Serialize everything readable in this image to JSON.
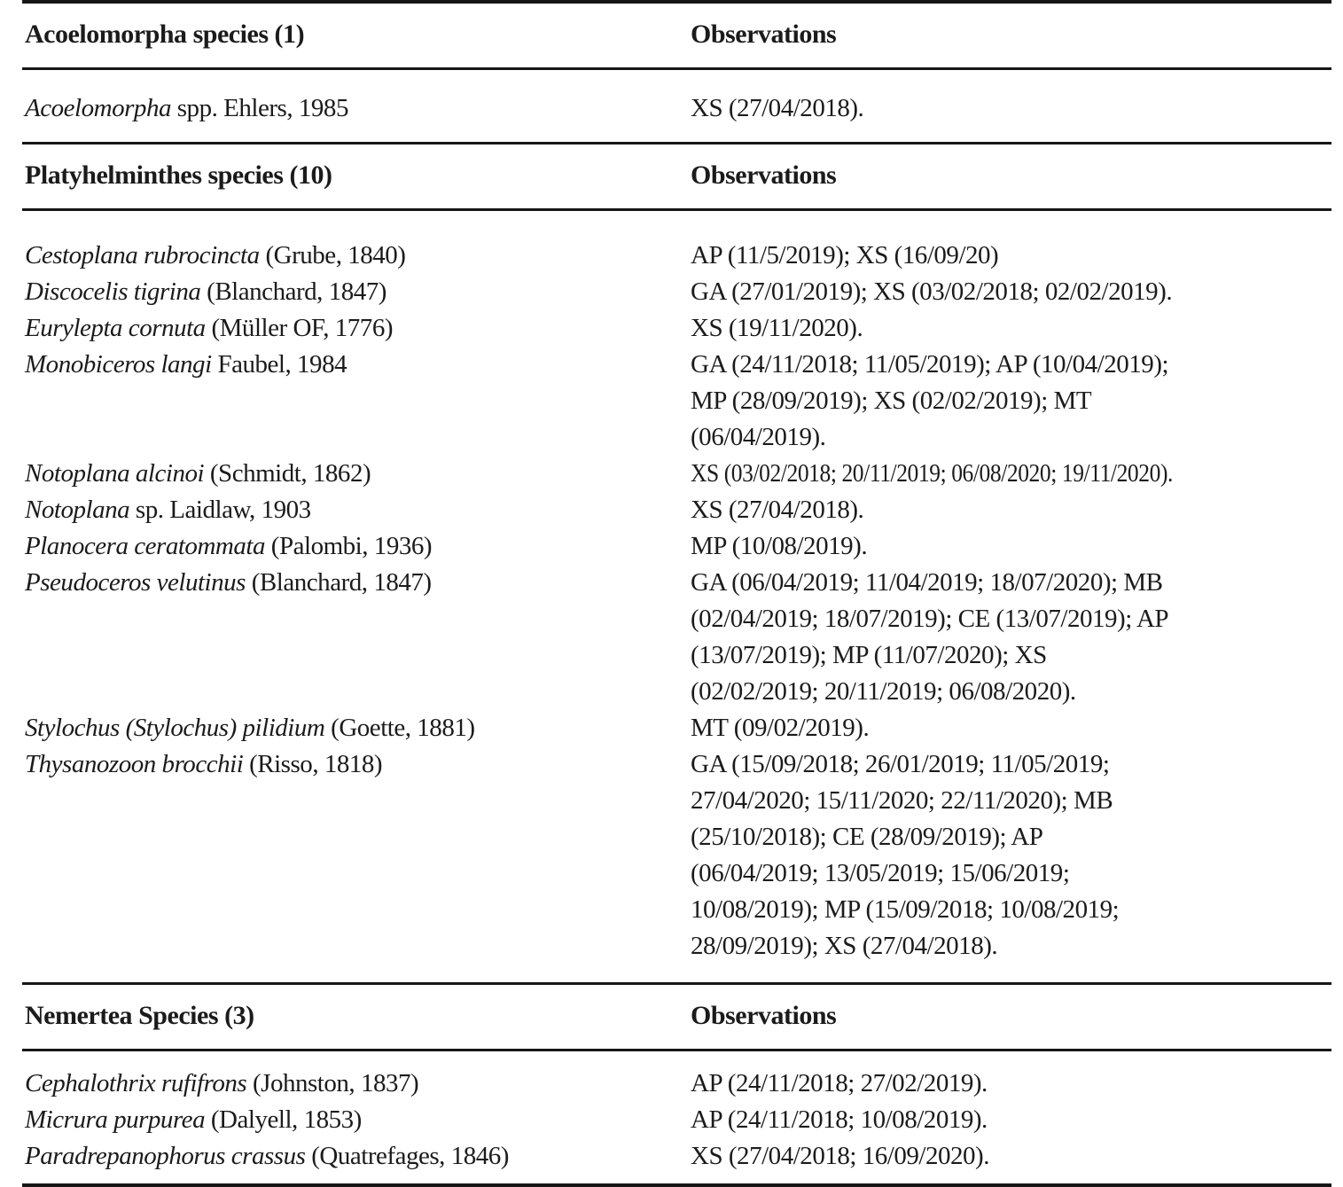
{
  "table": {
    "sections": [
      {
        "title": "Acoelomorpha species (1)",
        "obs_header": "Observations",
        "rows": [
          {
            "name": "Acoelomorpha",
            "authority": " spp. Ehlers, 1985",
            "observations": "XS (27/04/2018)."
          }
        ]
      },
      {
        "title": "Platyhelminthes species (10)",
        "obs_header": "Observations",
        "rows": [
          {
            "name": "Cestoplana rubrocincta",
            "authority": " (Grube, 1840)",
            "observations": "AP (11/5/2019); XS (16/09/20)"
          },
          {
            "name": "Discocelis tigrina",
            "authority": " (Blanchard, 1847)",
            "observations": "GA (27/01/2019); XS (03/02/2018; 02/02/2019)."
          },
          {
            "name": "Eurylepta cornuta",
            "authority": " (Müller OF, 1776)",
            "observations": "XS (19/11/2020)."
          },
          {
            "name": "Monobiceros langi",
            "authority": " Faubel, 1984",
            "observations": "GA (24/11/2018; 11/05/2019); AP (10/04/2019); MP (28/09/2019); XS (02/02/2019); MT (06/04/2019)."
          },
          {
            "name": "Notoplana alcinoi",
            "authority": " (Schmidt, 1862)",
            "observations": "XS (03/02/2018; 20/11/2019; 06/08/2020; 19/11/2020)."
          },
          {
            "name": "Notoplana",
            "authority": " sp. Laidlaw, 1903",
            "observations": "XS (27/04/2018)."
          },
          {
            "name": "Planocera ceratommata",
            "authority": " (Palombi, 1936)",
            "observations": "MP (10/08/2019)."
          },
          {
            "name": "Pseudoceros velutinus",
            "authority": " (Blanchard, 1847)",
            "observations": "GA (06/04/2019; 11/04/2019; 18/07/2020); MB (02/04/2019; 18/07/2019); CE (13/07/2019); AP (13/07/2019); MP (11/07/2020); XS (02/02/2019; 20/11/2019; 06/08/2020)."
          },
          {
            "name": "Stylochus (Stylochus) pilidium",
            "authority": " (Goette, 1881)",
            "observations": "MT (09/02/2019)."
          },
          {
            "name": "Thysanozoon brocchii",
            "authority": " (Risso, 1818)",
            "observations": "GA (15/09/2018; 26/01/2019; 11/05/2019; 27/04/2020; 15/11/2020; 22/11/2020); MB (25/10/2018); CE (28/09/2019); AP (06/04/2019; 13/05/2019; 15/06/2019; 10/08/2019); MP (15/09/2018; 10/08/2019; 28/09/2019); XS (27/04/2018)."
          }
        ]
      },
      {
        "title": "Nemertea Species (3)",
        "obs_header": "Observations",
        "rows": [
          {
            "name": "Cephalothrix rufifrons",
            "authority": " (Johnston, 1837)",
            "observations": "AP (24/11/2018; 27/02/2019)."
          },
          {
            "name": "Micrura purpurea",
            "authority": " (Dalyell, 1853)",
            "observations": "AP (24/11/2018; 10/08/2019)."
          },
          {
            "name": "Paradrepanophorus crassus",
            "authority": " (Quatrefages, 1846)",
            "observations": "XS (27/04/2018; 16/09/2020)."
          }
        ]
      }
    ]
  }
}
